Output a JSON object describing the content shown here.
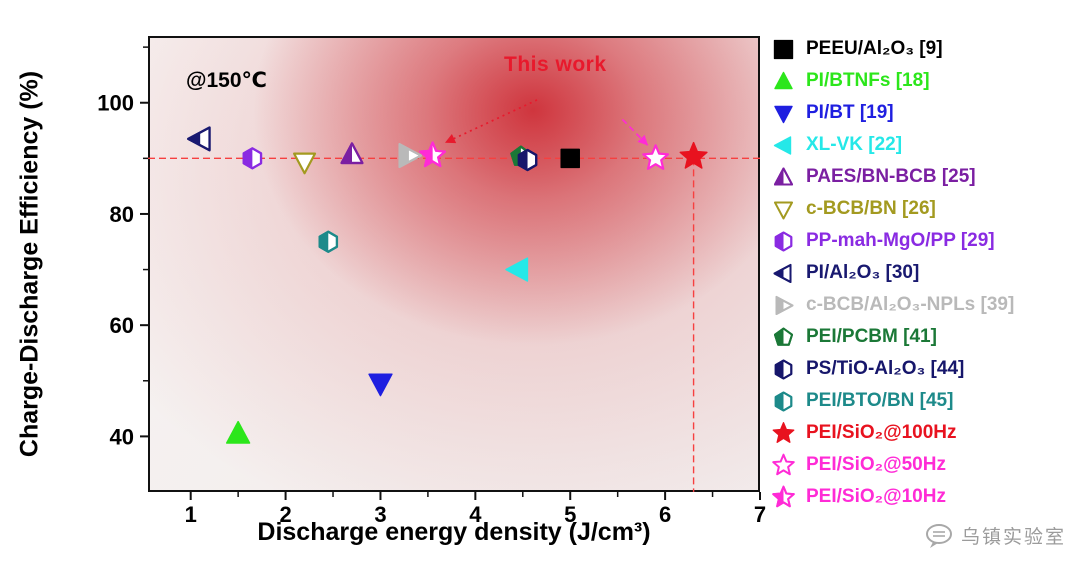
{
  "chart_data": {
    "type": "scatter",
    "annotations": {
      "temperature": "@150℃",
      "this_work": "This work"
    },
    "xlabel": "Discharge energy density (J/cm³)",
    "ylabel": "Charge-Discharge Efficiency (%)",
    "xlim": [
      0.55,
      7
    ],
    "ylim": [
      30,
      112
    ],
    "xticks": [
      1,
      2,
      3,
      4,
      5,
      6,
      7
    ],
    "xticks_minor": [
      1.5,
      2.5,
      3.5,
      4.5,
      5.5,
      6.5
    ],
    "yticks": [
      40,
      60,
      80,
      100
    ],
    "yticks_minor": [
      50,
      70,
      90,
      110
    ],
    "grid": false,
    "legend_position": "right",
    "reference_lines": {
      "horizontal_y": 90,
      "vertical_x": 6.3,
      "color": "#f64040"
    },
    "this_work_arrows": [
      {
        "x1": 4.65,
        "y1": 100.5,
        "x2": 3.68,
        "y2": 92.8,
        "color": "#e8192c",
        "dash": "2 4"
      },
      {
        "x1": 5.55,
        "y1": 97.0,
        "x2": 5.82,
        "y2": 92.3,
        "color": "#ff2bd6",
        "dash": "6 4"
      }
    ],
    "series": [
      {
        "label": "PEEU/Al₂O₃ [9]",
        "marker": "square",
        "fill": "filled",
        "color": "#000000",
        "x": 5.0,
        "y": 90.0,
        "size": 9
      },
      {
        "label": "PI/BTNFs [18]",
        "marker": "triangle-up",
        "fill": "filled",
        "color": "#2ce61b",
        "x": 1.5,
        "y": 40.5,
        "size": 12
      },
      {
        "label": "PI/BT [19]",
        "marker": "triangle-down",
        "fill": "filled",
        "color": "#1f1fe0",
        "x": 3.0,
        "y": 49.5,
        "size": 12
      },
      {
        "label": "XL-VK [22]",
        "marker": "triangle-left",
        "fill": "filled",
        "color": "#25e8e8",
        "x": 4.45,
        "y": 70.0,
        "size": 12
      },
      {
        "label": "PAES/BN-BCB [25]",
        "marker": "triangle-up",
        "fill": "half",
        "color": "#7b1fa2",
        "x": 2.7,
        "y": 90.7,
        "size": 11
      },
      {
        "label": "c-BCB/BN [26]",
        "marker": "triangle-down",
        "fill": "open",
        "color": "#a39a20",
        "x": 2.2,
        "y": 89.3,
        "size": 11
      },
      {
        "label": "PP-mah-MgO/PP [29]",
        "marker": "hexagon",
        "fill": "half",
        "color": "#8a2be2",
        "x": 1.65,
        "y": 90.0,
        "size": 10
      },
      {
        "label": "PI/Al₂O₃ [30]",
        "marker": "triangle-left",
        "fill": "half",
        "color": "#191970",
        "x": 1.1,
        "y": 93.5,
        "size": 12
      },
      {
        "label": "c-BCB/Al₂O₃-NPLs [39]",
        "marker": "triangle-right",
        "fill": "half",
        "color": "#b9b9b9",
        "x": 3.3,
        "y": 90.5,
        "size": 12
      },
      {
        "label": "PEI/PCBM [41]",
        "marker": "pentagon",
        "fill": "half",
        "color": "#1b7837",
        "x": 4.48,
        "y": 90.3,
        "size": 10
      },
      {
        "label": "PS/TiO-Al₂O₃ [44]",
        "marker": "hexagon",
        "fill": "half",
        "color": "#16166b",
        "x": 4.55,
        "y": 89.7,
        "size": 10
      },
      {
        "label": "PEI/BTO/BN [45]",
        "marker": "hexagon",
        "fill": "half",
        "color": "#1d8a8a",
        "x": 2.45,
        "y": 75.0,
        "size": 10
      },
      {
        "label": "PEI/SiO₂@100Hz",
        "marker": "star",
        "fill": "filled",
        "color": "#e8121f",
        "x": 6.3,
        "y": 90.3,
        "size": 14
      },
      {
        "label": "PEI/SiO₂@50Hz",
        "marker": "star",
        "fill": "open",
        "color": "#ff2bd6",
        "x": 5.9,
        "y": 90.0,
        "size": 13
      },
      {
        "label": "PEI/SiO₂@10Hz",
        "marker": "star",
        "fill": "half",
        "color": "#ff2bd6",
        "x": 3.55,
        "y": 90.5,
        "size": 13
      }
    ]
  },
  "watermark": {
    "text": "乌镇实验室"
  }
}
